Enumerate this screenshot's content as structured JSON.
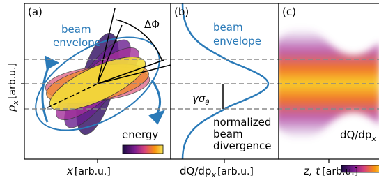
{
  "panels": [
    {
      "tag": "(a)",
      "annotations": [
        "beam",
        "envelope",
        "ΔΦ",
        "energy"
      ],
      "y_label": {
        "main": "p",
        "sub": "x",
        "unit": "[arb.u.]"
      },
      "x_label": {
        "main": "x",
        "unit": "[arb.u.]"
      }
    },
    {
      "tag": "(b)",
      "annotations": [
        "beam",
        "envelope",
        "γσ",
        "θ",
        "normalized",
        "beam",
        "divergence"
      ],
      "x_label": {
        "main": "dQ/dp",
        "sub": "x",
        "unit": "[arb.u.]"
      }
    },
    {
      "tag": "(c)",
      "colorbar_label": {
        "main": "dQ/dp",
        "sub": "x"
      },
      "x_label": {
        "main": "z, t",
        "unit": "[arb.u.]"
      }
    }
  ]
}
